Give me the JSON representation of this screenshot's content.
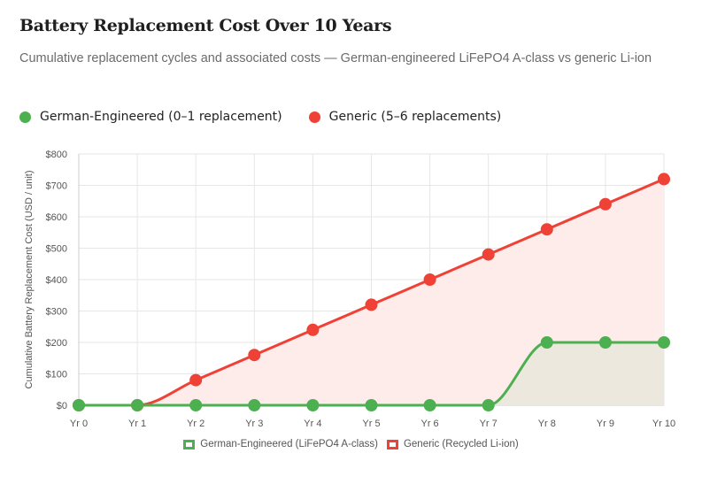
{
  "header": {
    "title": "Battery Replacement Cost Over 10 Years",
    "subtitle": "Cumulative replacement cycles and associated costs — German-engineered LiFePO4 A-class vs generic Li-ion"
  },
  "legend_top": [
    {
      "label": "German-Engineered (0–1 replacement)",
      "color": "#4caf50"
    },
    {
      "label": "Generic (5–6 replacements)",
      "color": "#ef4136"
    }
  ],
  "chart_data": {
    "type": "line",
    "categories": [
      "Yr 0",
      "Yr 1",
      "Yr 2",
      "Yr 3",
      "Yr 4",
      "Yr 5",
      "Yr 6",
      "Yr 7",
      "Yr 8",
      "Yr 9",
      "Yr 10"
    ],
    "series": [
      {
        "name": "German-Engineered (LiFePO4 A-class)",
        "values": [
          0,
          0,
          0,
          0,
          0,
          0,
          0,
          0,
          200,
          200,
          200
        ],
        "color": "#4caf50",
        "fill": "#ece8de"
      },
      {
        "name": "Generic (Recycled Li-ion)",
        "values": [
          0,
          0,
          80,
          160,
          240,
          320,
          400,
          480,
          560,
          640,
          720
        ],
        "color": "#ef4136",
        "fill": "#fdecea"
      }
    ],
    "ylabel": "Cumulative Battery Replacement Cost (USD / unit)",
    "ylim": [
      0,
      800
    ],
    "yticks": [
      0,
      100,
      200,
      300,
      400,
      500,
      600,
      700,
      800
    ],
    "ytick_labels": [
      "$0",
      "$100",
      "$200",
      "$300",
      "$400",
      "$500",
      "$600",
      "$700",
      "$800"
    ],
    "grid": true,
    "legend_position": "bottom"
  }
}
